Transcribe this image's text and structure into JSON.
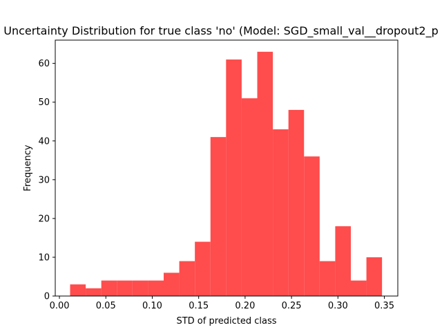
{
  "chart_data": {
    "type": "bar",
    "title": "Uncertainty Distribution for true class 'no' (Model: SGD_small_val__dropout2_p",
    "xlabel": "STD of predicted class",
    "ylabel": "Frequency",
    "bar_color": "#ff4c4c",
    "xlim": [
      -0.0045,
      0.3645
    ],
    "ylim": [
      0,
      66
    ],
    "xticks": [
      0.0,
      0.05,
      0.1,
      0.15,
      0.2,
      0.25,
      0.3,
      0.35
    ],
    "xtick_labels": [
      "0.00",
      "0.05",
      "0.10",
      "0.15",
      "0.20",
      "0.25",
      "0.30",
      "0.35"
    ],
    "yticks": [
      0,
      10,
      20,
      30,
      40,
      50,
      60
    ],
    "ytick_labels": [
      "0",
      "10",
      "20",
      "30",
      "40",
      "50",
      "60"
    ],
    "bins": [
      {
        "x0": 0.0115,
        "x1": 0.0283,
        "count": 3
      },
      {
        "x0": 0.0283,
        "x1": 0.0451,
        "count": 2
      },
      {
        "x0": 0.0451,
        "x1": 0.0619,
        "count": 4
      },
      {
        "x0": 0.0619,
        "x1": 0.0787,
        "count": 4
      },
      {
        "x0": 0.0787,
        "x1": 0.0955,
        "count": 4
      },
      {
        "x0": 0.0955,
        "x1": 0.1123,
        "count": 4
      },
      {
        "x0": 0.1123,
        "x1": 0.1291,
        "count": 6
      },
      {
        "x0": 0.1291,
        "x1": 0.1459,
        "count": 9
      },
      {
        "x0": 0.1459,
        "x1": 0.1627,
        "count": 14
      },
      {
        "x0": 0.1627,
        "x1": 0.1795,
        "count": 41
      },
      {
        "x0": 0.1795,
        "x1": 0.1963,
        "count": 61
      },
      {
        "x0": 0.1963,
        "x1": 0.2131,
        "count": 51
      },
      {
        "x0": 0.2131,
        "x1": 0.2299,
        "count": 63
      },
      {
        "x0": 0.2299,
        "x1": 0.2467,
        "count": 43
      },
      {
        "x0": 0.2467,
        "x1": 0.2635,
        "count": 48
      },
      {
        "x0": 0.2635,
        "x1": 0.2803,
        "count": 36
      },
      {
        "x0": 0.2803,
        "x1": 0.2971,
        "count": 9
      },
      {
        "x0": 0.2971,
        "x1": 0.3139,
        "count": 18
      },
      {
        "x0": 0.3139,
        "x1": 0.3307,
        "count": 4
      },
      {
        "x0": 0.3307,
        "x1": 0.3475,
        "count": 10
      }
    ],
    "grid": false,
    "legend": "none"
  }
}
